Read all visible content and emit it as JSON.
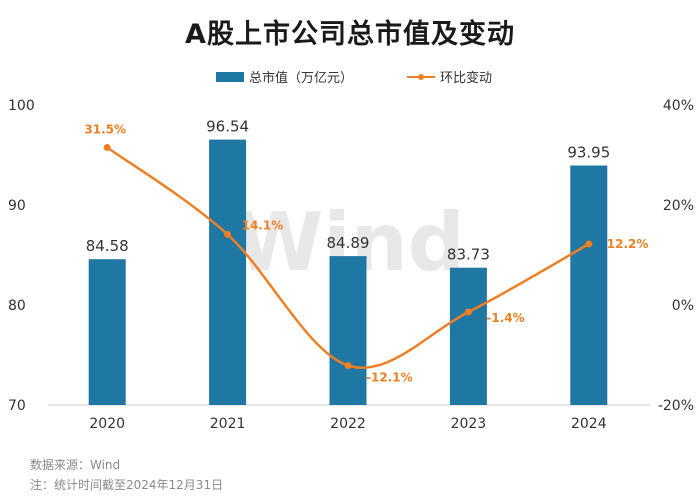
{
  "title": "A股上市公司总市值及变动",
  "chart_data": {
    "type": "bar+line",
    "categories": [
      "2020",
      "2021",
      "2022",
      "2023",
      "2024"
    ],
    "bar_series": {
      "name": "总市值（万亿元）",
      "values": [
        84.58,
        96.54,
        84.89,
        83.73,
        93.95
      ],
      "labels": [
        "84.58",
        "96.54",
        "84.89",
        "83.73",
        "93.95"
      ],
      "color": "#1f77a4"
    },
    "line_series": {
      "name": "环比变动",
      "values": [
        31.5,
        14.1,
        -12.1,
        -1.4,
        12.2
      ],
      "labels": [
        "31.5%",
        "14.1%",
        "-12.1%",
        "-1.4%",
        "12.2%"
      ],
      "color": "#f07f24"
    },
    "y_left": {
      "min": 70,
      "max": 100,
      "ticks": [
        "70",
        "80",
        "90",
        "100"
      ]
    },
    "y_right": {
      "min": -20,
      "max": 40,
      "ticks": [
        "-20%",
        "0%",
        "20%",
        "40%"
      ]
    },
    "legend_position": "top-center",
    "watermark": "Wind"
  },
  "footer": {
    "source": "数据来源：Wind",
    "note": "注：统计时间截至2024年12月31日"
  }
}
